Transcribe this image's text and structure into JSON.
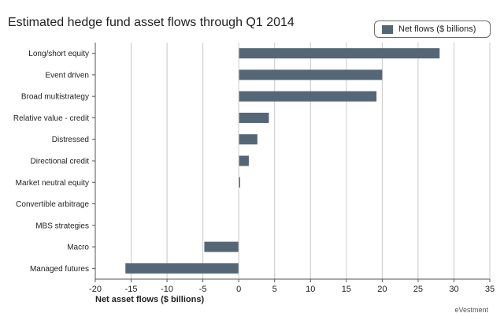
{
  "title": "Estimated hedge fund asset flows through Q1 2014",
  "legend": {
    "label": "Net flows ($ billions)"
  },
  "footer": "eVestment",
  "colors": {
    "bar": "#556677",
    "grid": "#c8c8c8",
    "axis": "#555555"
  },
  "chart_data": {
    "type": "bar",
    "orientation": "horizontal",
    "title": "Estimated hedge fund asset flows through Q1 2014",
    "xlabel": "Net asset flows ($ billions)",
    "ylabel": "",
    "categories": [
      "Long/short equity",
      "Event driven",
      "Broad multistrategy",
      "Relative value - credit",
      "Distressed",
      "Directional credit",
      "Market neutral equity",
      "Convertible arbitrage",
      "MBS strategies",
      "Macro",
      "Managed futures"
    ],
    "series": [
      {
        "name": "Net flows ($ billions)",
        "values": [
          28.0,
          20.0,
          19.2,
          4.2,
          2.6,
          1.4,
          0.2,
          0.0,
          0.0,
          -4.8,
          -15.8
        ]
      }
    ],
    "xlim": [
      -20,
      35
    ],
    "xticks": [
      -20,
      -15,
      -10,
      -5,
      0,
      5,
      10,
      15,
      20,
      25,
      30,
      35
    ],
    "grid": true,
    "legend_position": "top-right"
  }
}
